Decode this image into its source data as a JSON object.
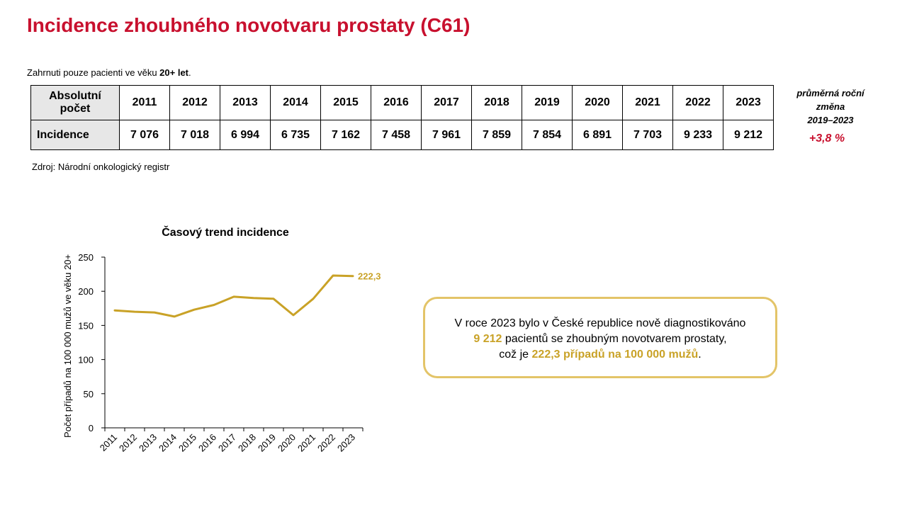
{
  "title": "Incidence zhoubného novotvaru prostaty (C61)",
  "note": {
    "prefix": "Zahrnuti pouze pacienti ve věku ",
    "bold": "20+ let",
    "suffix": "."
  },
  "table": {
    "header_label_1": "Absolutní",
    "header_label_2": "počet",
    "years": [
      "2011",
      "2012",
      "2013",
      "2014",
      "2015",
      "2016",
      "2017",
      "2018",
      "2019",
      "2020",
      "2021",
      "2022",
      "2023"
    ],
    "row_label": "Incidence",
    "values": [
      "7 076",
      "7 018",
      "6 994",
      "6 735",
      "7 162",
      "7 458",
      "7 961",
      "7 859",
      "7 854",
      "6 891",
      "7 703",
      "9 233",
      "9 212"
    ]
  },
  "change": {
    "label_1": "průměrná roční",
    "label_2": "změna",
    "label_3": "2019–2023",
    "value": "+3,8 %",
    "value_color": "#c8102e"
  },
  "source": "Zdroj: Národní onkologický registr",
  "info_box": {
    "line1": "V roce 2023 bylo v České republice nově diagnostikováno",
    "count": "9 212",
    "line2_suffix": " pacientů se zhoubným novotvarem prostaty,",
    "line3_prefix": "což je ",
    "rate": "222,3 případů na 100 000 mužů",
    "line3_suffix": "."
  },
  "colors": {
    "title": "#c8102e",
    "line": "#c9a227",
    "box_border": "#e3c468"
  },
  "chart_data": {
    "type": "line",
    "title": "Časový trend incidence",
    "ylabel": "Počet případů na 100 000 mužů ve věku 20+",
    "xlabel": "",
    "x": [
      "2011",
      "2012",
      "2013",
      "2014",
      "2015",
      "2016",
      "2017",
      "2018",
      "2019",
      "2020",
      "2021",
      "2022",
      "2023"
    ],
    "series": [
      {
        "values": [
          172,
          170,
          169,
          163,
          173,
          180,
          192,
          190,
          189,
          165,
          189,
          223,
          222.3
        ]
      }
    ],
    "ylim": [
      0,
      250
    ],
    "yticks": [
      0,
      50,
      100,
      150,
      200,
      250
    ],
    "end_label": "222,3",
    "grid": false
  }
}
